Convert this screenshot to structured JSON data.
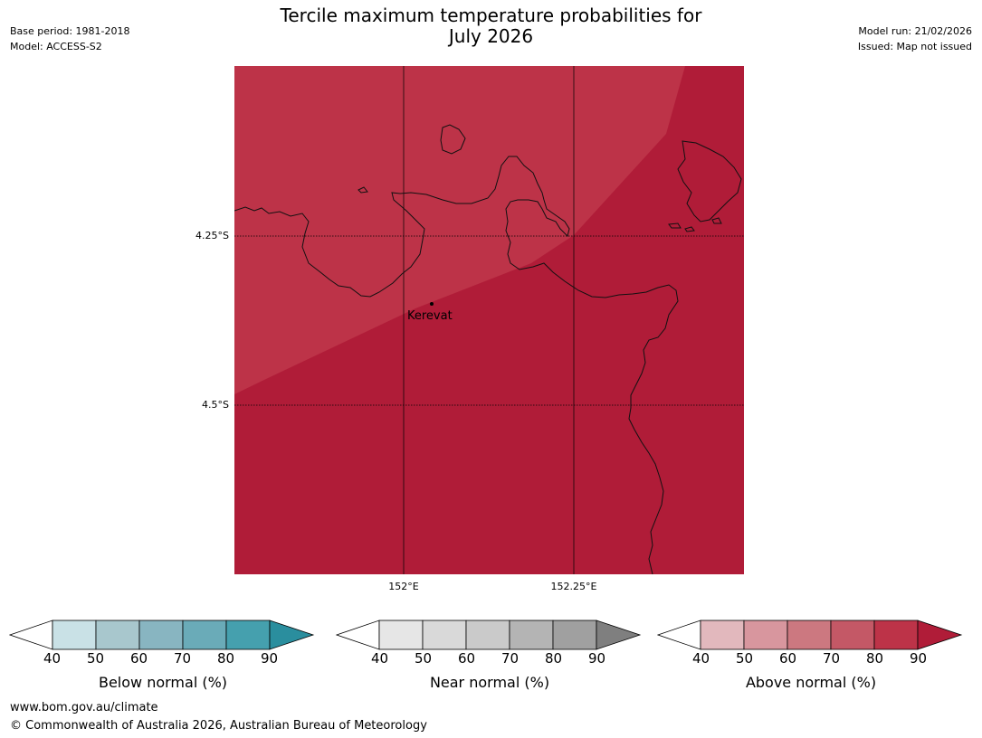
{
  "header": {
    "title_line1": "Tercile maximum temperature probabilities for",
    "title_line2": "July 2026",
    "base_period": "Base period: 1981-2018",
    "model": "Model: ACCESS-S2",
    "model_run": "Model run: 21/02/2026",
    "issued": "Issued: Map not issued"
  },
  "map": {
    "lat_labels": [
      "4.25°S",
      "4.5°S"
    ],
    "lon_labels": [
      "152°E",
      "152.25°E"
    ],
    "place_label": "Kerevat",
    "colors": {
      "above_80": "#bd3348",
      "above_90": "#b01c38"
    }
  },
  "legends": [
    {
      "title": "Below normal (%)",
      "ticks": [
        "40",
        "50",
        "60",
        "70",
        "80",
        "90"
      ],
      "colors": [
        "#ffffff",
        "#c9e1e6",
        "#a8c7cd",
        "#88b5c1",
        "#6aabb8",
        "#45a0ae",
        "#2a8e9e"
      ]
    },
    {
      "title": "Near normal (%)",
      "ticks": [
        "40",
        "50",
        "60",
        "70",
        "80",
        "90"
      ],
      "colors": [
        "#ffffff",
        "#e6e6e6",
        "#d9d9d9",
        "#cacaca",
        "#b4b4b4",
        "#a0a0a0",
        "#7f7f7f"
      ]
    },
    {
      "title": "Above normal (%)",
      "ticks": [
        "40",
        "50",
        "60",
        "70",
        "80",
        "90"
      ],
      "colors": [
        "#ffffff",
        "#e2b8bd",
        "#d8969e",
        "#cc7880",
        "#c45866",
        "#bd3348",
        "#b01c38"
      ]
    }
  ],
  "footer": {
    "url": "www.bom.gov.au/climate",
    "copyright": "© Commonwealth of Australia 2026, Australian Bureau of Meteorology"
  }
}
